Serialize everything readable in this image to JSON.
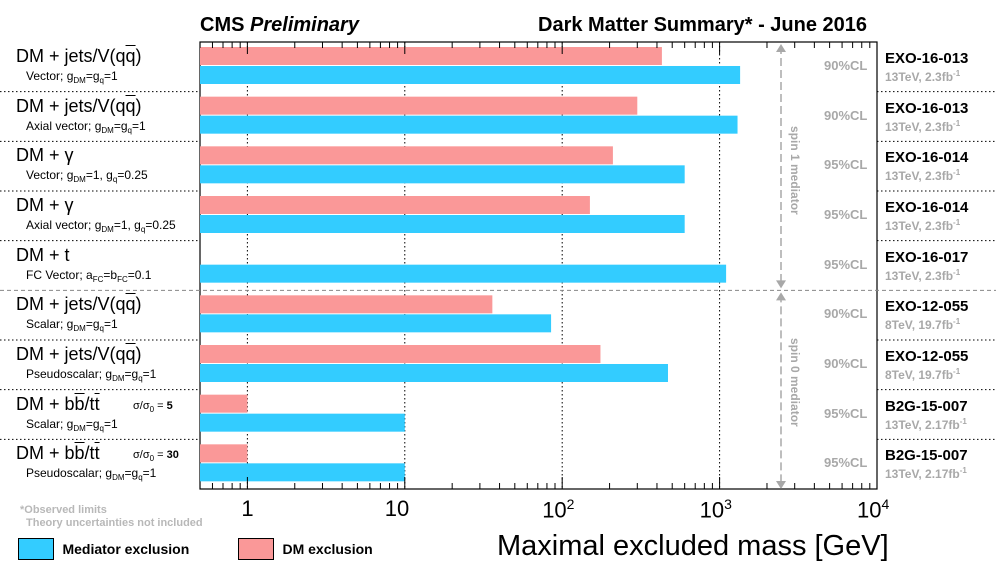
{
  "header": {
    "left_bold": "CMS",
    "left_italic": "Preliminary",
    "right": "Dark Matter Summary* - June 2016"
  },
  "footnote": {
    "line1": "*Observed limits",
    "line2": "Theory uncertainties not included"
  },
  "legend": {
    "mediator": "Mediator exclusion",
    "dm": "DM exclusion"
  },
  "spin_labels": {
    "spin1": "spin 1 mediator",
    "spin0": "spin 0 mediator"
  },
  "colors": {
    "mediator": "#33ccff",
    "dm": "#fa9898",
    "grid": "#000000",
    "gray_text": "#a8a8a8"
  },
  "chart_data": {
    "type": "bar",
    "orientation": "horizontal",
    "xscale": "log",
    "xlim": [
      0.5,
      10000
    ],
    "xlabel": "Maximal excluded mass [GeV]",
    "x_tick_labels": [
      "1",
      "10",
      "10^2",
      "10^3",
      "10^4"
    ],
    "series_names": [
      "Mediator exclusion",
      "DM exclusion"
    ],
    "rows": [
      {
        "title": "DM + jets/V(qq̄)",
        "subtitle": "Vector; g_DM=g_q=1",
        "mediator": 1350,
        "dm": 430,
        "cl": "90%CL",
        "analysis": "EXO-16-013",
        "dataset": "13TeV, 2.3fb-1",
        "ratio": ""
      },
      {
        "title": "DM + jets/V(qq̄)",
        "subtitle": "Axial vector; g_DM=g_q=1",
        "mediator": 1300,
        "dm": 300,
        "cl": "90%CL",
        "analysis": "EXO-16-013",
        "dataset": "13TeV, 2.3fb-1",
        "ratio": ""
      },
      {
        "title": "DM + γ",
        "subtitle": "Vector; g_DM=1, g_q=0.25",
        "mediator": 600,
        "dm": 210,
        "cl": "95%CL",
        "analysis": "EXO-16-014",
        "dataset": "13TeV, 2.3fb-1",
        "ratio": ""
      },
      {
        "title": "DM + γ",
        "subtitle": "Axial vector; g_DM=1, g_q=0.25",
        "mediator": 600,
        "dm": 150,
        "cl": "95%CL",
        "analysis": "EXO-16-014",
        "dataset": "13TeV, 2.3fb-1",
        "ratio": ""
      },
      {
        "title": "DM + t",
        "subtitle": "FC Vector; a_FC=b_FC=0.1",
        "mediator": 1100,
        "dm": null,
        "cl": "95%CL",
        "analysis": "EXO-16-017",
        "dataset": "13TeV, 2.3fb-1",
        "ratio": ""
      },
      {
        "title": "DM + jets/V(qq̄)",
        "subtitle": "Scalar; g_DM=g_q=1",
        "mediator": 85,
        "dm": 36,
        "cl": "90%CL",
        "analysis": "EXO-12-055",
        "dataset": "8TeV, 19.7fb-1",
        "ratio": ""
      },
      {
        "title": "DM + jets/V(qq̄)",
        "subtitle": "Pseudoscalar; g_DM=g_q=1",
        "mediator": 470,
        "dm": 175,
        "cl": "90%CL",
        "analysis": "EXO-12-055",
        "dataset": "8TeV, 19.7fb-1",
        "ratio": ""
      },
      {
        "title": "DM + bb̄/tt̄",
        "subtitle": "Scalar; g_DM=g_q=1",
        "mediator": 10,
        "dm": 1,
        "cl": "95%CL",
        "analysis": "B2G-15-007",
        "dataset": "13TeV, 2.17fb-1",
        "ratio": "σ/σ0 = 5"
      },
      {
        "title": "DM + bb̄/tt̄",
        "subtitle": "Pseudoscalar; g_DM=g_q=1",
        "mediator": 10,
        "dm": 1,
        "cl": "95%CL",
        "analysis": "B2G-15-007",
        "dataset": "13TeV, 2.17fb-1",
        "ratio": "σ/σ0 = 30"
      }
    ]
  }
}
